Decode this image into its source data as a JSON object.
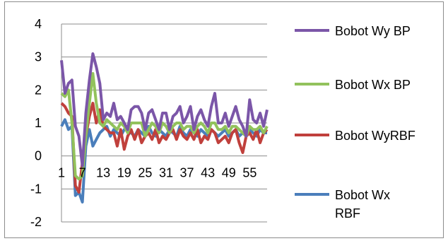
{
  "chart_data": {
    "type": "line",
    "title": "",
    "xlabel": "",
    "ylabel": "",
    "ylim": [
      -2,
      4
    ],
    "yticks": [
      4,
      3,
      2,
      1,
      0,
      -1,
      -2
    ],
    "xtick_labels": [
      "1",
      "7",
      "13",
      "19",
      "25",
      "31",
      "37",
      "43",
      "49",
      "55"
    ],
    "grid": "horizontal",
    "legend_position": "right",
    "x": [
      1,
      2,
      3,
      4,
      5,
      6,
      7,
      8,
      9,
      10,
      11,
      12,
      13,
      14,
      15,
      16,
      17,
      18,
      19,
      20,
      21,
      22,
      23,
      24,
      25,
      26,
      27,
      28,
      29,
      30,
      31,
      32,
      33,
      34,
      35,
      36,
      37,
      38,
      39,
      40,
      41,
      42,
      43,
      44,
      45,
      46,
      47,
      48,
      49,
      50,
      51,
      52,
      53,
      54,
      55,
      56,
      57,
      58,
      59,
      60
    ],
    "series": [
      {
        "name": "Bobot Wy BP",
        "color": "#7b56a8",
        "values": [
          2.9,
          1.9,
          2.2,
          2.3,
          0.9,
          0.6,
          -0.3,
          1.3,
          2.3,
          3.1,
          2.7,
          2.2,
          1.1,
          1.3,
          1.2,
          1.6,
          1.1,
          1.2,
          1.0,
          0.8,
          1.4,
          1.5,
          1.5,
          1.3,
          0.8,
          1.3,
          1.4,
          1.1,
          0.8,
          1.3,
          1.3,
          0.8,
          1.2,
          1.3,
          1.5,
          1.0,
          1.2,
          1.5,
          0.8,
          1.2,
          1.4,
          1.1,
          0.9,
          1.5,
          1.9,
          1.0,
          1.0,
          1.3,
          0.9,
          1.2,
          1.5,
          1.1,
          0.9,
          0.6,
          1.7,
          1.1,
          1.0,
          1.3,
          0.9,
          1.4
        ]
      },
      {
        "name": "Bobot Wx BP",
        "color": "#92c25c",
        "values": [
          1.9,
          1.8,
          2.0,
          1.0,
          -0.6,
          -0.7,
          -0.6,
          0.6,
          1.6,
          2.5,
          1.6,
          1.0,
          0.9,
          1.1,
          1.0,
          0.9,
          0.8,
          1.0,
          0.9,
          0.7,
          1.0,
          1.0,
          1.0,
          1.0,
          0.6,
          0.8,
          1.0,
          0.9,
          0.7,
          1.0,
          0.9,
          0.7,
          0.9,
          1.0,
          1.0,
          0.8,
          0.9,
          0.9,
          0.7,
          0.9,
          1.0,
          0.9,
          0.7,
          1.0,
          1.0,
          0.8,
          0.8,
          0.9,
          0.7,
          0.9,
          0.9,
          0.8,
          0.7,
          0.6,
          0.9,
          0.8,
          0.8,
          0.9,
          0.7,
          0.9
        ]
      },
      {
        "name": "Bobot WyRBF",
        "color": "#c0403c",
        "values": [
          1.6,
          1.5,
          1.3,
          1.2,
          -0.9,
          -1.1,
          -0.2,
          0.6,
          1.2,
          1.6,
          1.0,
          1.4,
          0.9,
          0.8,
          0.7,
          0.7,
          0.3,
          0.8,
          0.2,
          0.6,
          0.8,
          0.5,
          0.8,
          0.4,
          0.6,
          0.7,
          0.5,
          0.8,
          0.4,
          0.6,
          0.5,
          0.7,
          0.8,
          0.5,
          0.8,
          0.6,
          0.5,
          0.7,
          0.5,
          0.8,
          0.4,
          0.6,
          0.5,
          0.8,
          0.7,
          0.4,
          0.5,
          0.6,
          0.4,
          0.7,
          0.8,
          0.4,
          0.1,
          0.6,
          0.7,
          0.5,
          0.8,
          0.4,
          0.7,
          0.8
        ]
      },
      {
        "name": "Bobot Wx\nRBF",
        "color": "#4a7ebb",
        "values": [
          0.9,
          1.1,
          0.8,
          0.9,
          -1.2,
          -1.1,
          -1.4,
          0.3,
          0.8,
          0.3,
          0.5,
          0.7,
          0.8,
          0.9,
          0.6,
          0.8,
          0.7,
          0.6,
          0.8,
          0.9,
          0.7,
          0.6,
          0.8,
          0.7,
          0.6,
          0.9,
          0.7,
          0.6,
          0.8,
          0.7,
          0.6,
          0.8,
          0.7,
          0.6,
          0.9,
          0.7,
          0.6,
          0.8,
          0.7,
          0.6,
          0.8,
          0.7,
          0.6,
          0.8,
          0.7,
          0.6,
          0.7,
          0.8,
          0.6,
          0.7,
          0.8,
          0.6,
          0.7,
          0.6,
          0.8,
          0.7,
          0.6,
          0.8,
          0.7,
          0.7
        ]
      }
    ]
  }
}
